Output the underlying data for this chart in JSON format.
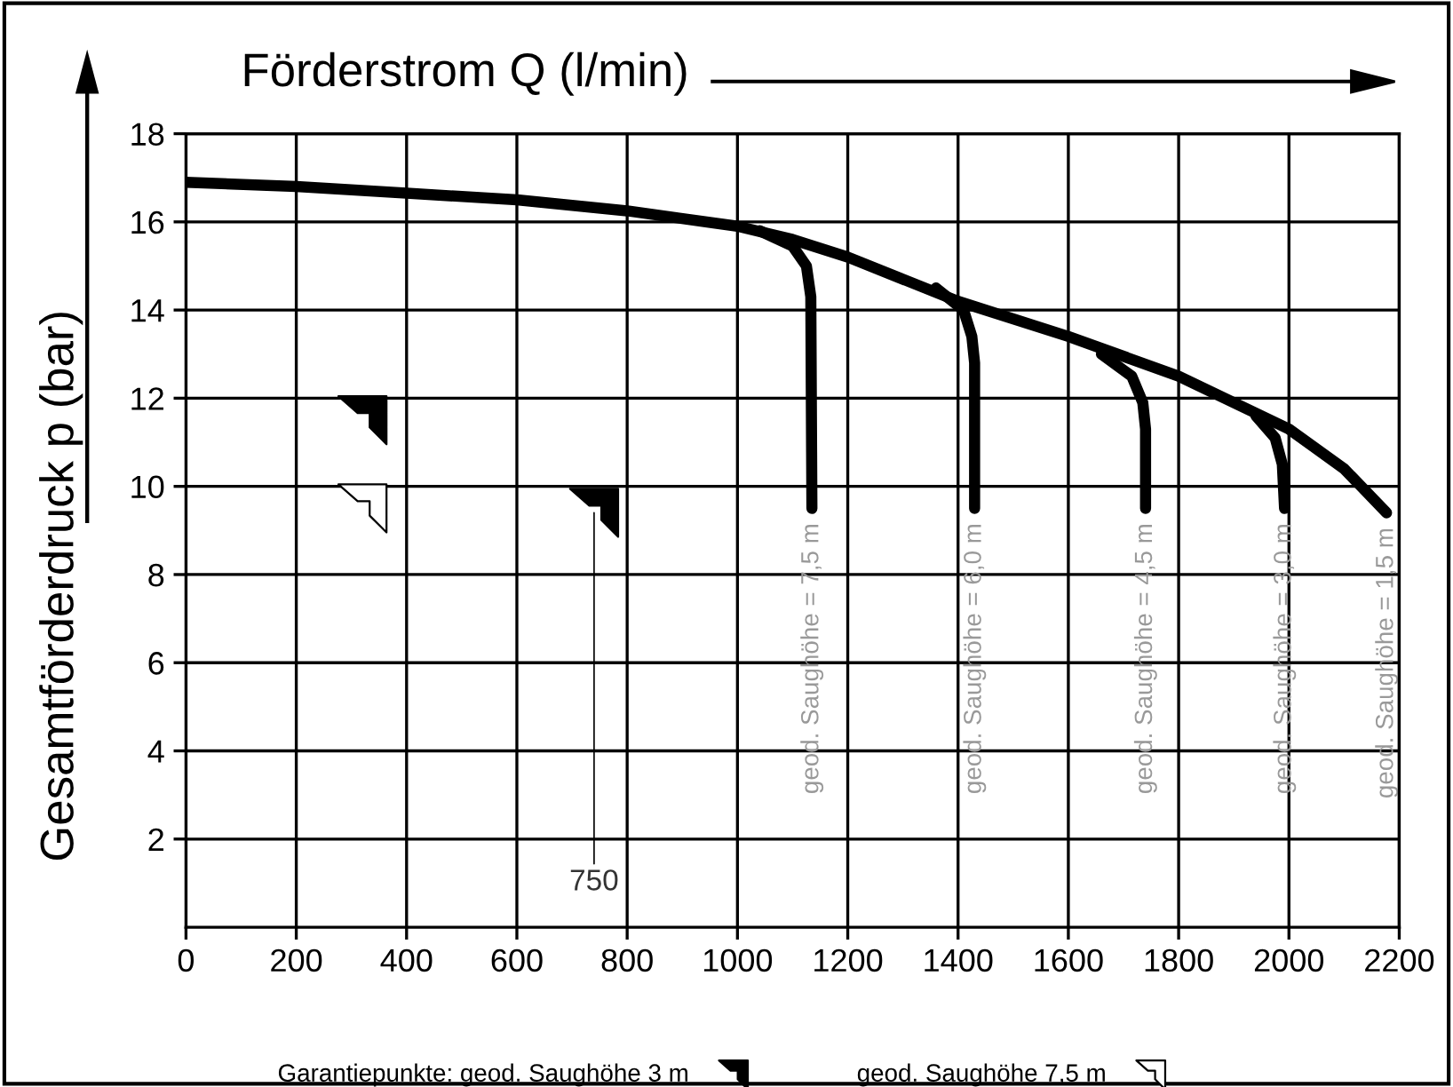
{
  "chart_data": {
    "type": "line",
    "xlabel": "Förderstrom Q (l/min)",
    "ylabel": "Gesamtförderdruck p (bar)",
    "xlim": [
      0,
      2200
    ],
    "xticks": [
      0,
      200,
      400,
      600,
      800,
      1000,
      1200,
      1400,
      1600,
      1800,
      2000,
      2200
    ],
    "ylim": [
      0,
      18
    ],
    "yticks": [
      2,
      4,
      6,
      8,
      10,
      12,
      14,
      16,
      18
    ],
    "grid": true,
    "legend": "bottom",
    "marker": "none",
    "line_style": "solid",
    "series": [
      {
        "color": "#000000",
        "x": [
          0,
          200,
          400,
          600,
          800,
          1000,
          1100,
          1200,
          1400,
          1600,
          1800,
          2000,
          2100,
          2177
        ],
        "values": [
          16.9,
          16.8,
          16.65,
          16.5,
          16.25,
          15.9,
          15.6,
          15.2,
          14.2,
          13.4,
          12.5,
          11.3,
          10.4,
          9.4
        ]
      },
      {
        "color": "#000000",
        "x": [
          1040,
          1100,
          1125,
          1133,
          1135
        ],
        "values": [
          15.8,
          15.45,
          15.0,
          14.3,
          9.5
        ]
      },
      {
        "color": "#000000",
        "x": [
          1360,
          1410,
          1425,
          1430,
          1430
        ],
        "values": [
          14.5,
          14.0,
          13.4,
          12.8,
          9.5
        ]
      },
      {
        "color": "#000000",
        "x": [
          1660,
          1715,
          1735,
          1740,
          1740
        ],
        "values": [
          13.0,
          12.5,
          11.9,
          11.3,
          9.5
        ]
      },
      {
        "color": "#000000",
        "x": [
          1940,
          1975,
          1988,
          1992
        ],
        "values": [
          11.6,
          11.1,
          10.5,
          9.5
        ]
      },
      {
        "type": "scatter",
        "name": "Garantiepunkte: geod. Saughöhe 3 m",
        "color": "#000000",
        "x": [
          320,
          740
        ],
        "values": [
          11.5,
          9.4
        ]
      },
      {
        "type": "scatter",
        "name": "geod. Saughöhe 7,5 m",
        "color": "#ffffff",
        "x": [
          320
        ],
        "values": [
          9.5
        ]
      }
    ],
    "annotations": [
      {
        "text": "geod. Saughöhe = 7,5 m",
        "x": 1135,
        "y": 9.5
      },
      {
        "text": "geod. Saughöhe = 6,0 m",
        "x": 1430,
        "y": 9.5
      },
      {
        "text": "geod. Saughöhe = 4,5 m",
        "x": 1740,
        "y": 9.5
      },
      {
        "text": "geod. Saughöhe = 3,0 m",
        "x": 1992,
        "y": 9.5
      },
      {
        "text": "geod. Saughöhe = 1,5 m",
        "x": 2177,
        "y": 9.4
      },
      {
        "text": "750",
        "x": 740,
        "y": 9.4
      }
    ]
  }
}
